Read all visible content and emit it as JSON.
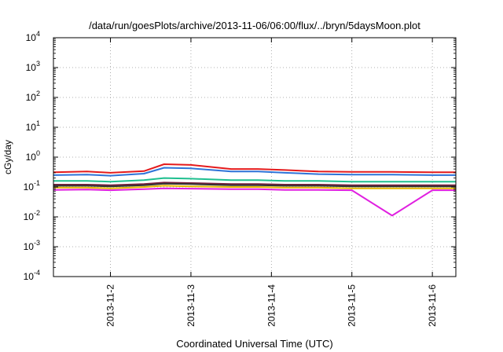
{
  "chart_data": {
    "type": "line",
    "title": "/data/run/goesPlots/archive/2013-11-06/06:00/flux/../bryn/5daysMoon.plot",
    "xlabel": "Coordinated Universal Time (UTC)",
    "ylabel": "cGy/day",
    "yscale": "log",
    "ylim": [
      0.0001,
      10000
    ],
    "xlim": [
      "2013-11-01 07:00",
      "2013-11-06 07:00"
    ],
    "grid": "dotted",
    "legend": "none",
    "ytick_exponents": [
      "4",
      "3",
      "2",
      "1",
      "0",
      "-1",
      "-2",
      "-3",
      "-4"
    ],
    "ytick_base": "10",
    "xticks": [
      "2013-11-2",
      "2013-11-3",
      "2013-11-4",
      "2013-11-5",
      "2013-11-6"
    ],
    "x": [
      "2013-11-01 07:00",
      "2013-11-01 17:00",
      "2013-11-02 00:00",
      "2013-11-02 10:00",
      "2013-11-02 16:00",
      "2013-11-03 00:00",
      "2013-11-03 12:00",
      "2013-11-03 20:00",
      "2013-11-04 04:00",
      "2013-11-04 14:00",
      "2013-11-05 00:00",
      "2013-11-05 12:00",
      "2013-11-06 00:00",
      "2013-11-06 07:00"
    ],
    "series": [
      {
        "color": "#e41a1c",
        "values": [
          0.31,
          0.33,
          0.3,
          0.34,
          0.58,
          0.55,
          0.4,
          0.4,
          0.37,
          0.33,
          0.32,
          0.32,
          0.31,
          0.31
        ]
      },
      {
        "color": "#2e73d8",
        "values": [
          0.25,
          0.26,
          0.24,
          0.28,
          0.44,
          0.42,
          0.33,
          0.33,
          0.3,
          0.27,
          0.26,
          0.26,
          0.25,
          0.25
        ]
      },
      {
        "color": "#1fbf8f",
        "values": [
          0.16,
          0.16,
          0.15,
          0.17,
          0.2,
          0.19,
          0.17,
          0.17,
          0.16,
          0.16,
          0.15,
          0.15,
          0.15,
          0.15
        ]
      },
      {
        "color": "#7a1f3d",
        "values": [
          0.12,
          0.12,
          0.115,
          0.125,
          0.14,
          0.135,
          0.125,
          0.125,
          0.12,
          0.12,
          0.115,
          0.115,
          0.115,
          0.115
        ]
      },
      {
        "color": "#333333",
        "values": [
          0.11,
          0.11,
          0.105,
          0.115,
          0.13,
          0.125,
          0.115,
          0.115,
          0.11,
          0.11,
          0.105,
          0.105,
          0.105,
          0.105
        ]
      },
      {
        "color": "#e6b800",
        "values": [
          0.095,
          0.095,
          0.09,
          0.1,
          0.11,
          0.105,
          0.1,
          0.1,
          0.095,
          0.095,
          0.09,
          0.09,
          0.09,
          0.09
        ]
      },
      {
        "color": "#e020e0",
        "values": [
          0.08,
          0.082,
          0.078,
          0.085,
          0.09,
          0.088,
          0.085,
          0.085,
          0.08,
          0.08,
          0.078,
          0.011,
          0.078,
          0.078
        ]
      }
    ]
  }
}
